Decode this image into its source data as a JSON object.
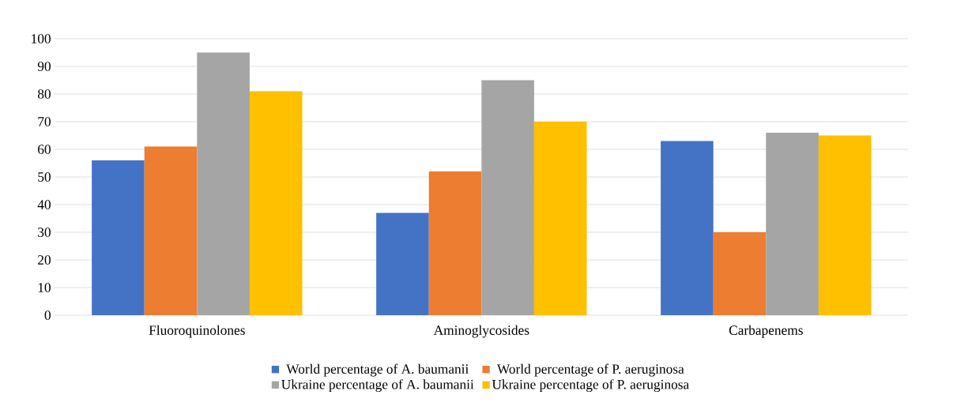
{
  "chart_data": {
    "type": "bar",
    "categories": [
      "Fluoroquinolones",
      "Aminoglycosides",
      "Carbapenems"
    ],
    "series": [
      {
        "name": "World percentage of A. baumanii",
        "color": "#4472c4",
        "values": [
          56,
          37,
          63
        ]
      },
      {
        "name": "World percentage of P. aeruginosa",
        "color": "#ed7d31",
        "values": [
          61,
          52,
          30
        ]
      },
      {
        "name": "Ukraine percentage of A. baumanii",
        "color": "#a5a5a5",
        "values": [
          95,
          85,
          66
        ]
      },
      {
        "name": "Ukraine percentage of P. aeruginosa",
        "color": "#ffc000",
        "values": [
          81,
          70,
          65
        ]
      }
    ],
    "ylim": [
      0,
      100
    ],
    "yticks": [
      0,
      10,
      20,
      30,
      40,
      50,
      60,
      70,
      80,
      90,
      100
    ],
    "grid": "y",
    "legend": "bottom"
  }
}
